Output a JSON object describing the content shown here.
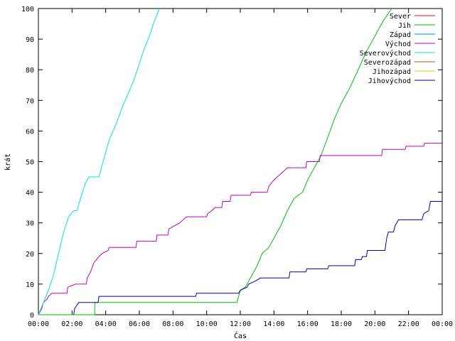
{
  "chart_data": {
    "type": "line",
    "xlabel": "Čas",
    "ylabel": "krát",
    "xlim": [
      0,
      24
    ],
    "ylim": [
      0,
      100
    ],
    "x_ticks": [
      {
        "v": 0,
        "label": "00:00"
      },
      {
        "v": 2,
        "label": "02:00"
      },
      {
        "v": 4,
        "label": "04:00"
      },
      {
        "v": 6,
        "label": "06:00"
      },
      {
        "v": 8,
        "label": "08:00"
      },
      {
        "v": 10,
        "label": "10:00"
      },
      {
        "v": 12,
        "label": "12:00"
      },
      {
        "v": 14,
        "label": "14:00"
      },
      {
        "v": 16,
        "label": "16:00"
      },
      {
        "v": 18,
        "label": "18:00"
      },
      {
        "v": 20,
        "label": "20:00"
      },
      {
        "v": 22,
        "label": "22:00"
      },
      {
        "v": 24,
        "label": "00:00"
      }
    ],
    "y_ticks": [
      0,
      10,
      20,
      30,
      40,
      50,
      60,
      70,
      80,
      90,
      100
    ],
    "grid": false,
    "legend_position": "top-right",
    "series": [
      {
        "name": "Sever",
        "color": "#ff0000",
        "points": []
      },
      {
        "name": "Jih",
        "color": "#00c000",
        "points": [
          [
            0,
            0
          ],
          [
            3.35,
            0
          ],
          [
            3.35,
            4
          ],
          [
            11.8,
            4
          ],
          [
            12,
            8
          ],
          [
            12.3,
            9
          ],
          [
            12.6,
            12
          ],
          [
            13,
            16
          ],
          [
            13.3,
            20
          ],
          [
            13.7,
            22
          ],
          [
            14,
            25
          ],
          [
            14.4,
            29
          ],
          [
            14.8,
            34
          ],
          [
            15.2,
            38
          ],
          [
            15.7,
            40
          ],
          [
            16,
            44
          ],
          [
            16.4,
            48
          ],
          [
            16.8,
            52
          ],
          [
            17.2,
            58
          ],
          [
            17.6,
            64
          ],
          [
            18,
            69
          ],
          [
            18.5,
            74
          ],
          [
            19,
            80
          ],
          [
            19.5,
            86
          ],
          [
            20,
            91
          ],
          [
            20.5,
            96
          ],
          [
            21,
            100
          ]
        ]
      },
      {
        "name": "Západ",
        "color": "#0080ff",
        "points": []
      },
      {
        "name": "Východ",
        "color": "#c000c0",
        "points": [
          [
            0,
            0
          ],
          [
            0.2,
            2
          ],
          [
            0.3,
            4
          ],
          [
            0.5,
            5
          ],
          [
            0.6,
            6
          ],
          [
            0.8,
            7
          ],
          [
            1.7,
            7
          ],
          [
            1.75,
            9
          ],
          [
            2.2,
            10
          ],
          [
            2.85,
            10
          ],
          [
            2.9,
            12
          ],
          [
            3.1,
            14
          ],
          [
            3.3,
            17
          ],
          [
            3.6,
            19
          ],
          [
            3.8,
            20
          ],
          [
            4.15,
            21
          ],
          [
            4.2,
            22
          ],
          [
            5.8,
            22
          ],
          [
            5.85,
            24
          ],
          [
            7.0,
            24
          ],
          [
            7.05,
            26
          ],
          [
            7.7,
            26
          ],
          [
            7.75,
            28
          ],
          [
            8.4,
            30
          ],
          [
            8.8,
            32
          ],
          [
            10.0,
            32
          ],
          [
            10.05,
            33
          ],
          [
            10.3,
            34
          ],
          [
            10.5,
            35
          ],
          [
            10.9,
            35
          ],
          [
            10.95,
            37
          ],
          [
            11.4,
            37
          ],
          [
            11.45,
            39
          ],
          [
            12.6,
            39
          ],
          [
            12.65,
            40
          ],
          [
            13.6,
            40
          ],
          [
            13.7,
            42
          ],
          [
            14.0,
            44
          ],
          [
            14.4,
            46
          ],
          [
            14.8,
            48
          ],
          [
            15.9,
            48
          ],
          [
            15.95,
            50
          ],
          [
            16.7,
            50
          ],
          [
            16.75,
            52
          ],
          [
            20.4,
            52
          ],
          [
            20.45,
            54
          ],
          [
            21.8,
            54
          ],
          [
            21.85,
            55
          ],
          [
            22.9,
            55
          ],
          [
            22.95,
            56
          ],
          [
            24,
            56
          ]
        ]
      },
      {
        "name": "Severovýchod",
        "color": "#00e0e0",
        "points": [
          [
            0,
            0
          ],
          [
            0.3,
            4
          ],
          [
            0.6,
            8
          ],
          [
            0.9,
            13
          ],
          [
            1.2,
            20
          ],
          [
            1.5,
            27
          ],
          [
            1.8,
            32
          ],
          [
            2.1,
            34
          ],
          [
            2.3,
            34
          ],
          [
            2.5,
            38
          ],
          [
            2.8,
            43
          ],
          [
            3.0,
            45
          ],
          [
            3.6,
            45
          ],
          [
            3.9,
            51
          ],
          [
            4.2,
            57
          ],
          [
            4.6,
            62
          ],
          [
            5.0,
            68
          ],
          [
            5.4,
            73
          ],
          [
            5.7,
            77
          ],
          [
            6.0,
            82
          ],
          [
            6.3,
            87
          ],
          [
            6.6,
            91
          ],
          [
            6.9,
            96
          ],
          [
            7.2,
            100
          ]
        ]
      },
      {
        "name": "Severozápad",
        "color": "#c05020",
        "points": []
      },
      {
        "name": "Jihozápad",
        "color": "#e0d000",
        "points": []
      },
      {
        "name": "Jihovýchod",
        "color": "#0000a0",
        "points": [
          [
            2.1,
            0
          ],
          [
            2.15,
            2
          ],
          [
            2.4,
            4
          ],
          [
            3.55,
            4
          ],
          [
            3.6,
            6
          ],
          [
            9.35,
            6
          ],
          [
            9.4,
            7
          ],
          [
            11.9,
            7
          ],
          [
            12.0,
            8
          ],
          [
            12.4,
            9
          ],
          [
            12.5,
            10
          ],
          [
            12.9,
            11
          ],
          [
            13.2,
            12
          ],
          [
            14.9,
            12
          ],
          [
            14.95,
            14
          ],
          [
            15.9,
            14
          ],
          [
            15.95,
            15
          ],
          [
            17.2,
            15
          ],
          [
            17.25,
            16
          ],
          [
            18.8,
            16
          ],
          [
            18.85,
            18
          ],
          [
            19.2,
            18
          ],
          [
            19.25,
            19
          ],
          [
            19.5,
            19
          ],
          [
            19.55,
            21
          ],
          [
            20.6,
            21
          ],
          [
            20.7,
            25
          ],
          [
            20.8,
            27
          ],
          [
            21.1,
            27
          ],
          [
            21.2,
            29
          ],
          [
            21.4,
            31
          ],
          [
            22.8,
            31
          ],
          [
            22.9,
            33
          ],
          [
            23.2,
            34
          ],
          [
            23.3,
            37
          ],
          [
            24,
            37
          ]
        ]
      }
    ]
  }
}
